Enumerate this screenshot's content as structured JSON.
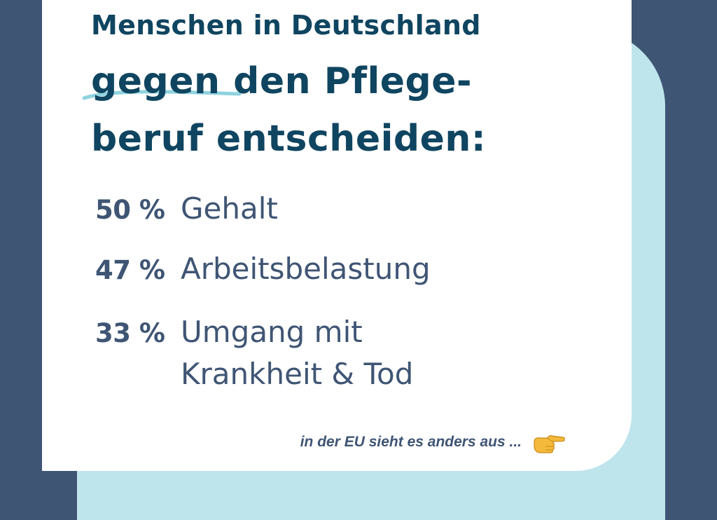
{
  "headline": {
    "line1": "Menschen in Deutschland",
    "line2_highlight": "gegen",
    "line2_rest": " den Pflege-",
    "line3": "beruf entscheiden:"
  },
  "stats": [
    {
      "percent": "50 %",
      "label_line1": "Gehalt",
      "label_line2": ""
    },
    {
      "percent": "47 %",
      "label_line1": "Arbeitsbelastung",
      "label_line2": ""
    },
    {
      "percent": "33 %",
      "label_line1": "Umgang mit",
      "label_line2": "Krankheit & Tod"
    }
  ],
  "footnote": "in der EU sieht es anders aus ...",
  "icons": {
    "pointer": "pointing-right-hand-icon"
  },
  "colors": {
    "background": "#3f5574",
    "accent_panel": "#bfe5ec",
    "card": "#ffffff",
    "headline": "#0f4560",
    "body_text": "#3f5574",
    "highlight_stroke": "#8fd3df"
  }
}
